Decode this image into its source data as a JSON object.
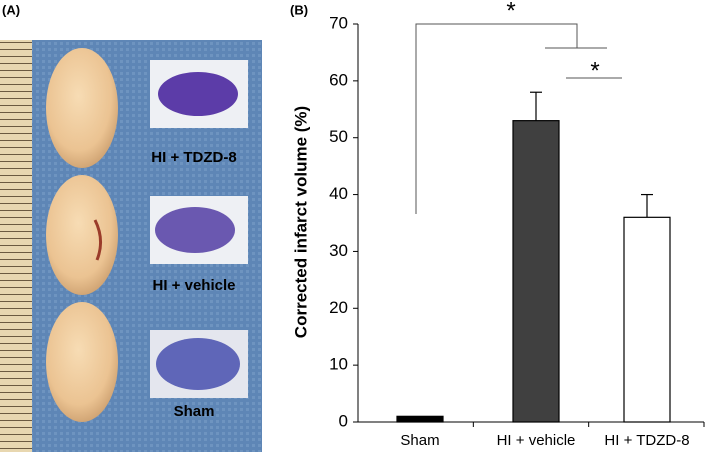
{
  "panel_a": {
    "label": "(A)",
    "groups": [
      "HI + TDZD-8",
      "HI + vehicle",
      "Sham"
    ]
  },
  "chart_data": {
    "type": "bar",
    "panel_label": "(B)",
    "y_label": "Corrected infarct volume (%)",
    "categories": [
      "Sham",
      "HI + vehicle",
      "HI + TDZD-8"
    ],
    "values": [
      1,
      53,
      36
    ],
    "errors": [
      null,
      5,
      4
    ],
    "colors": [
      "#000000",
      "#404040",
      "#ffffff"
    ],
    "ylim": [
      0,
      70
    ],
    "yticks": [
      0,
      10,
      20,
      30,
      40,
      50,
      60,
      70
    ],
    "annotations": [
      "*",
      "*"
    ]
  }
}
